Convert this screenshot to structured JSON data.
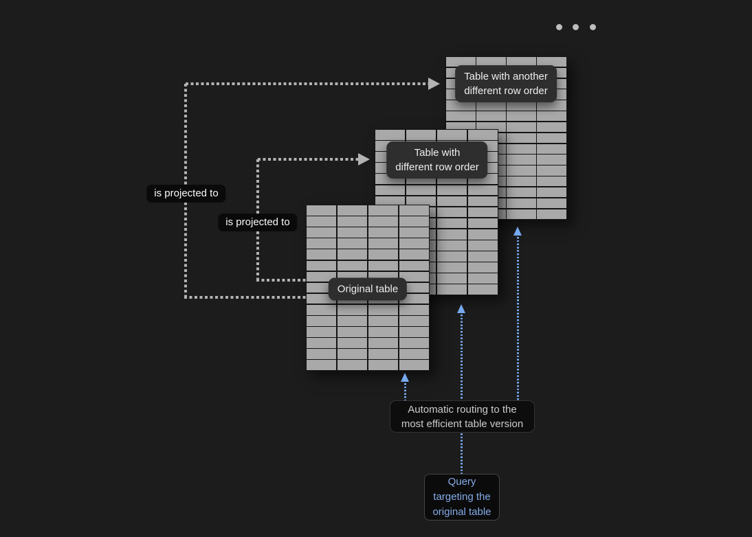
{
  "colors": {
    "background": "#1c1c1c",
    "table_fill": "#a9a9a9",
    "table_grid_line": "#141414",
    "table_label_bg": "#2e2e2e",
    "table_label_text": "#efefef",
    "pill_bg": "#0a0a0a",
    "pill_text": "#fafafa",
    "routing_note_bg": "#0d0d0d",
    "routing_note_text": "#cccccc",
    "query_box_bg": "#0b0b0b",
    "query_text": "#84abe9",
    "gray_connector": "#b3b3b3",
    "blue_connector": "#76a9ed",
    "ellipsis_dots": "#bdbdbd"
  },
  "diagram": {
    "tables": [
      {
        "label": "Table with another\ndifferent row order",
        "rows": 15,
        "cols": 4
      },
      {
        "label": "Table with\ndifferent row order",
        "rows": 15,
        "cols": 4
      },
      {
        "label": "Original table",
        "rows": 15,
        "cols": 4
      }
    ],
    "edges": {
      "projected_to_outer": "is projected to",
      "projected_to_inner": "is projected to"
    },
    "routing_note": "Automatic routing to the\nmost efficient table version",
    "query_box": "Query\ntargeting the\noriginal table",
    "more_versions_dots": 3
  }
}
